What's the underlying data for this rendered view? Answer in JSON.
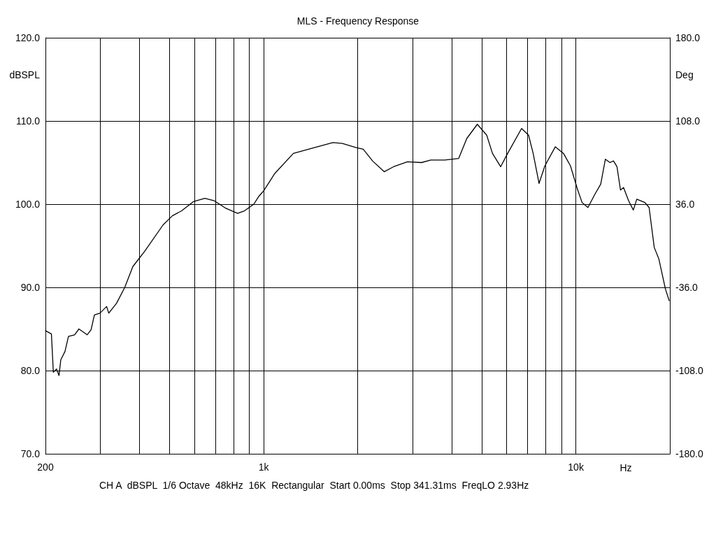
{
  "chart_data": {
    "type": "line",
    "title": "MLS - Frequency Response",
    "xlabel": "Hz",
    "ylabel": "dBSPL",
    "y2label": "Deg",
    "log": "x",
    "grid": true,
    "marker": "none",
    "line_style": "solid",
    "xlim": [
      200,
      20000
    ],
    "xticks": [
      {
        "value": 200,
        "label": "200"
      },
      {
        "value": 300,
        "label": null
      },
      {
        "value": 400,
        "label": null
      },
      {
        "value": 500,
        "label": null
      },
      {
        "value": 600,
        "label": null
      },
      {
        "value": 700,
        "label": null
      },
      {
        "value": 800,
        "label": null
      },
      {
        "value": 900,
        "label": null
      },
      {
        "value": 1000,
        "label": "1k"
      },
      {
        "value": 2000,
        "label": null
      },
      {
        "value": 3000,
        "label": null
      },
      {
        "value": 4000,
        "label": null
      },
      {
        "value": 5000,
        "label": null
      },
      {
        "value": 6000,
        "label": null
      },
      {
        "value": 7000,
        "label": null
      },
      {
        "value": 8000,
        "label": null
      },
      {
        "value": 9000,
        "label": null
      },
      {
        "value": 10000,
        "label": "10k"
      }
    ],
    "ylim": [
      70,
      120
    ],
    "yticks": [
      {
        "value": 70,
        "label": "70.0"
      },
      {
        "value": 80,
        "label": "80.0"
      },
      {
        "value": 90,
        "label": "90.0"
      },
      {
        "value": 100,
        "label": "100.0"
      },
      {
        "value": 110,
        "label": "110.0"
      },
      {
        "value": 120,
        "label": "120.0"
      }
    ],
    "y2lim": [
      -180,
      180
    ],
    "y2ticks": [
      {
        "value": -180,
        "label": "-180.0"
      },
      {
        "value": -108,
        "label": "-108.0"
      },
      {
        "value": -36,
        "label": "-36.0"
      },
      {
        "value": 36,
        "label": "36.0"
      },
      {
        "value": 108,
        "label": "108.0"
      },
      {
        "value": 180,
        "label": "180.0"
      }
    ],
    "series": [
      {
        "color": "#000000",
        "x": [
          200,
          209,
          212,
          217,
          221,
          224,
          231,
          237,
          248,
          256,
          272,
          280,
          287,
          299,
          314,
          319,
          338,
          359,
          381,
          415,
          476,
          510,
          546,
          595,
          648,
          695,
          757,
          825,
          868,
          930,
          963,
          1000,
          1086,
          1245,
          1453,
          1667,
          1786,
          1979,
          2084,
          2232,
          2432,
          2606,
          2888,
          3202,
          3430,
          3802,
          4214,
          4474,
          4834,
          5180,
          5406,
          5742,
          6046,
          6700,
          7054,
          7298,
          7622,
          7956,
          8594,
          9128,
          9610,
          10116,
          10468,
          10930,
          11508,
          12010,
          12432,
          12862,
          13198,
          13542,
          13896,
          14216,
          14758,
          15276,
          15672,
          16638,
          17162,
          17826,
          18448,
          19360,
          19900
        ],
        "values": [
          84.8,
          84.4,
          79.8,
          80.2,
          79.4,
          81.3,
          82.3,
          84.1,
          84.3,
          85.0,
          84.3,
          84.9,
          86.7,
          86.9,
          87.7,
          86.9,
          88.1,
          90.0,
          92.5,
          94.3,
          97.5,
          98.6,
          99.2,
          100.3,
          100.7,
          100.4,
          99.5,
          98.9,
          99.2,
          100.0,
          100.9,
          101.6,
          103.7,
          106.1,
          106.8,
          107.4,
          107.3,
          106.8,
          106.6,
          105.2,
          103.9,
          104.5,
          105.1,
          105.0,
          105.3,
          105.3,
          105.5,
          107.9,
          109.6,
          108.3,
          106.1,
          104.5,
          106.1,
          109.1,
          108.3,
          106.1,
          102.5,
          104.6,
          106.9,
          106.1,
          104.6,
          101.8,
          100.2,
          99.6,
          101.2,
          102.4,
          105.4,
          105.0,
          105.2,
          104.5,
          101.7,
          102.0,
          100.4,
          99.3,
          100.6,
          100.2,
          99.6,
          94.8,
          93.4,
          89.8,
          88.4
        ]
      }
    ],
    "annotations": [
      "CH A  dBSPL  1/6 Octave  48kHz  16K  Rectangular  Start 0.00ms  Stop 341.31ms  FreqLO 2.93Hz"
    ]
  }
}
